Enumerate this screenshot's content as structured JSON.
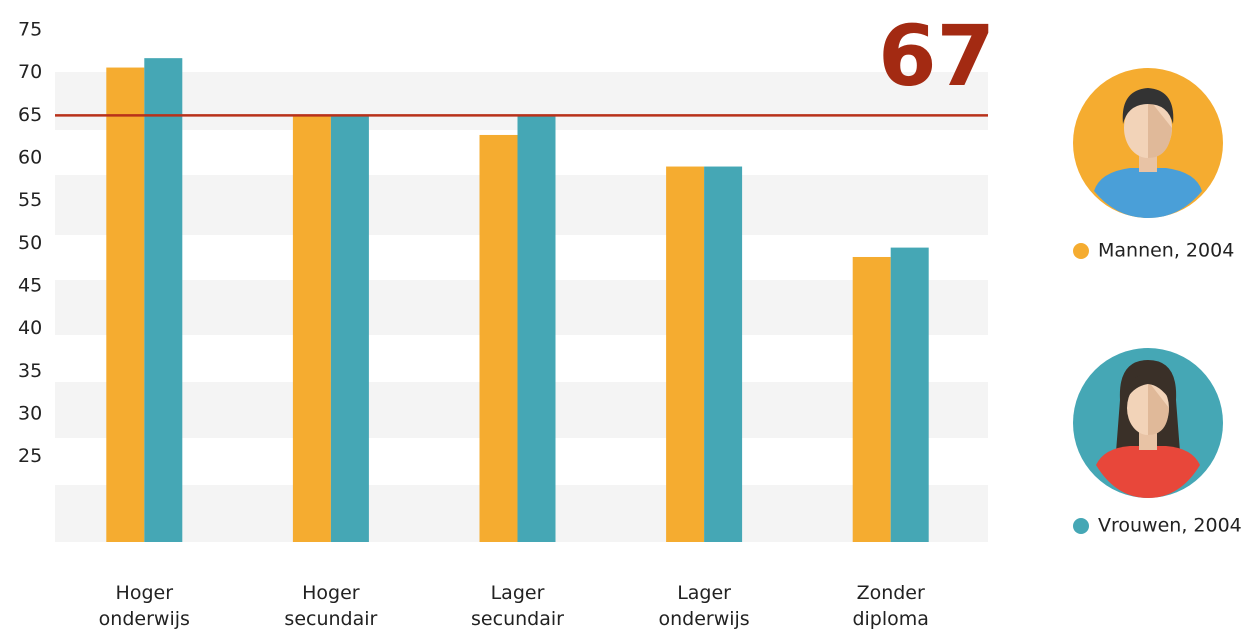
{
  "chart_data": {
    "type": "bar",
    "categories": [
      "Hoger onderwijs",
      "Hoger secundair",
      "Lager secundair",
      "Lager onderwijs",
      "Zonder diploma"
    ],
    "series": [
      {
        "name": "Mannen, 2004",
        "color": "#f5ac30",
        "values": [
          70.6,
          64.9,
          62.7,
          59,
          48.4
        ]
      },
      {
        "name": "Vrouwen, 2004",
        "color": "#45a7b5",
        "values": [
          71.7,
          64.9,
          64.9,
          59,
          49.5
        ]
      }
    ],
    "ylim": [
      15,
      75
    ],
    "yticks": [
      25,
      30,
      35,
      40,
      45,
      50,
      55,
      60,
      65,
      70,
      75
    ],
    "reference_line": {
      "value": 65,
      "color": "#b8311a"
    },
    "annotation": "67"
  }
}
